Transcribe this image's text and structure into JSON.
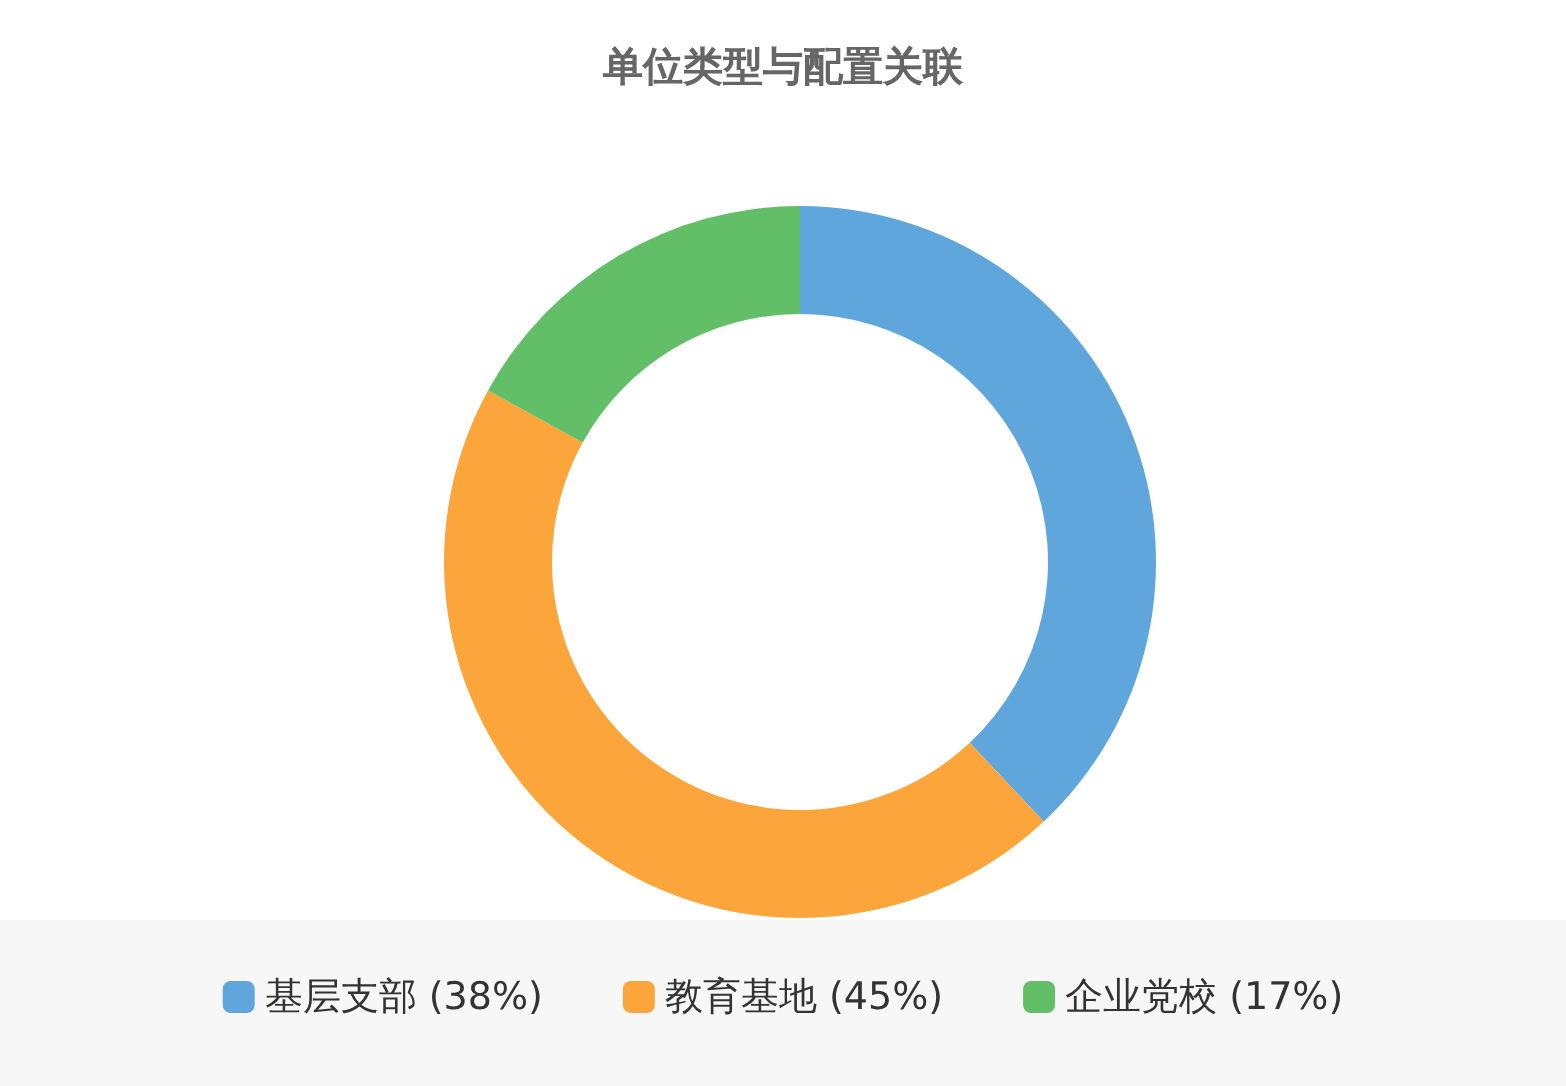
{
  "chart_data": {
    "type": "donut",
    "title": "单位类型与配置关联",
    "categories": [
      "基层支部 (38%)",
      "教育基地 (45%)",
      "企业党校 (17%)"
    ],
    "values": [
      38,
      45,
      17
    ],
    "colors": [
      "#5ea6dc",
      "#fba53b",
      "#62bf67"
    ],
    "legend": "bottom"
  }
}
